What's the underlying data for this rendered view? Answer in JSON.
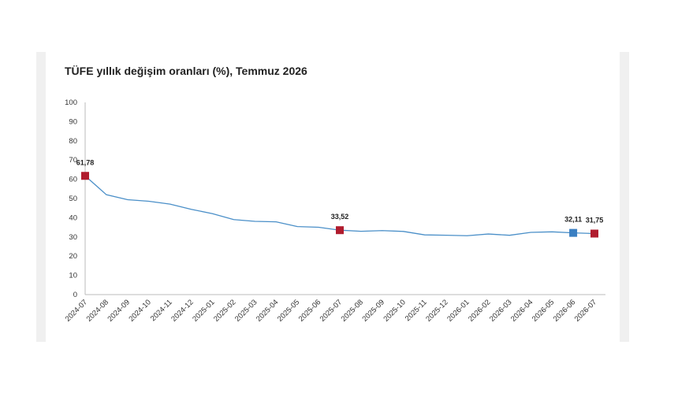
{
  "chart_data": {
    "type": "line",
    "title": "TÜFE yıllık değişim oranları (%), Temmuz 2026",
    "xlabel": "",
    "ylabel": "",
    "ylim": [
      0,
      100
    ],
    "yticks": [
      "0",
      "10",
      "20",
      "30",
      "40",
      "50",
      "60",
      "70",
      "80",
      "90",
      "100"
    ],
    "grid": false,
    "categories": [
      "2024-07",
      "2024-08",
      "2024-09",
      "2024-10",
      "2024-11",
      "2024-12",
      "2025-01",
      "2025-02",
      "2025-03",
      "2025-04",
      "2025-05",
      "2025-06",
      "2025-07",
      "2025-08",
      "2025-09",
      "2025-10",
      "2025-11",
      "2025-12",
      "2026-01",
      "2026-02",
      "2026-03",
      "2026-04",
      "2026-05",
      "2026-06",
      "2026-07"
    ],
    "series": [
      {
        "values": [
          61.78,
          51.97,
          49.38,
          48.58,
          47.09,
          44.38,
          42.12,
          39.05,
          38.1,
          37.86,
          35.41,
          35.05,
          33.52,
          32.95,
          33.29,
          32.87,
          31.07,
          30.89,
          30.65,
          31.53,
          30.87,
          32.37,
          32.65,
          32.11,
          31.75
        ],
        "color": "#4a8fc8"
      }
    ],
    "highlights": [
      {
        "index": 0,
        "label": "61,78",
        "color": "#b01c2e"
      },
      {
        "index": 12,
        "label": "33,52",
        "color": "#b01c2e"
      },
      {
        "index": 23,
        "label": "32,11",
        "color": "#3a7fc2"
      },
      {
        "index": 24,
        "label": "31,75",
        "color": "#b01c2e"
      }
    ]
  }
}
